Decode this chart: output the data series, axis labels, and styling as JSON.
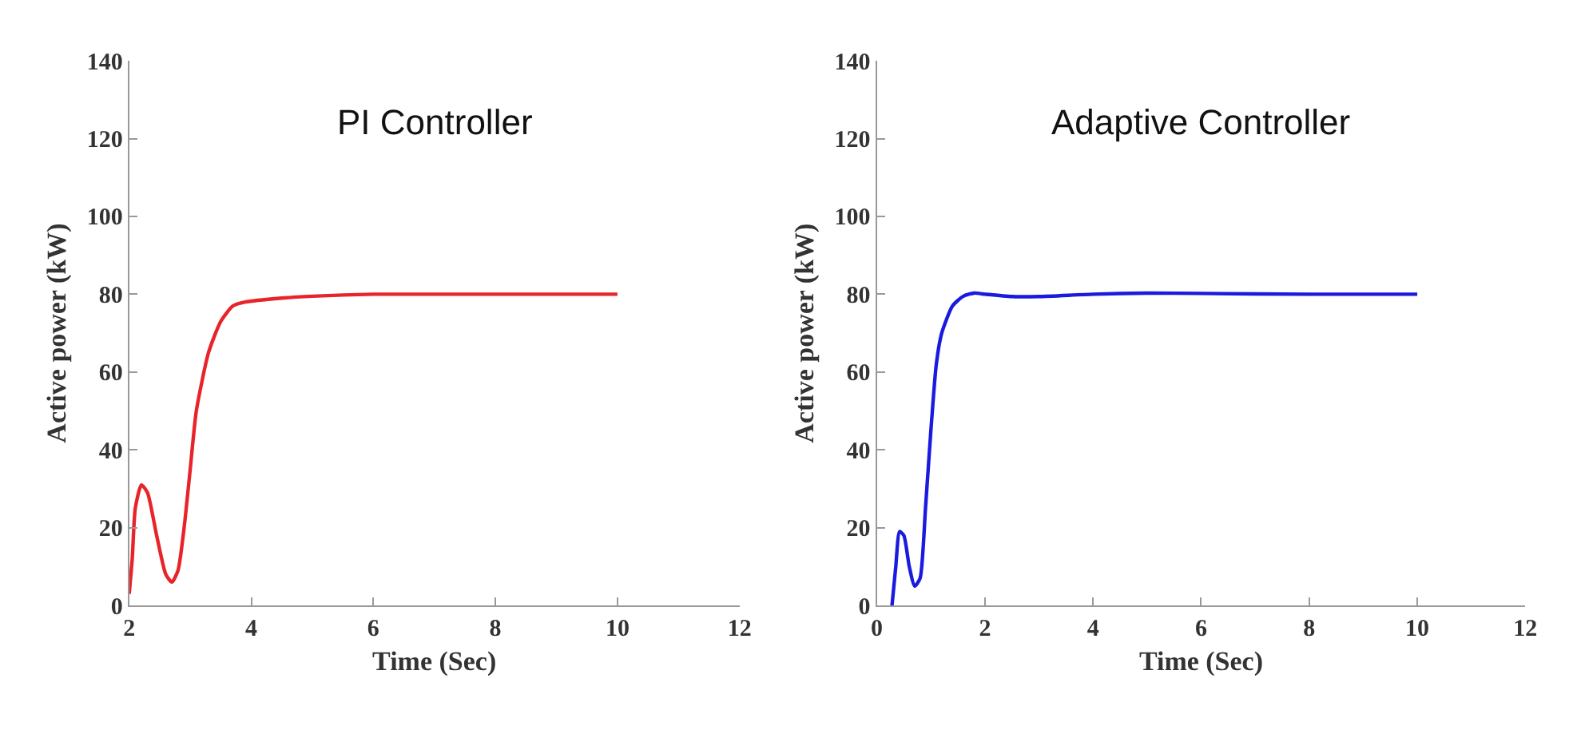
{
  "chart_data": [
    {
      "type": "line",
      "title": "PI Controller",
      "xlabel": "Time (Sec)",
      "ylabel": "Active power (kW)",
      "xlim": [
        2,
        12
      ],
      "xticks": [
        2,
        4,
        6,
        8,
        10,
        12
      ],
      "ylim": [
        0,
        140
      ],
      "yticks": [
        0,
        20,
        40,
        60,
        80,
        100,
        120,
        140
      ],
      "series": [
        {
          "color": "#e8242a",
          "x": [
            2,
            2.05,
            2.1,
            2.2,
            2.3,
            2.45,
            2.6,
            2.7,
            2.8,
            2.9,
            3.0,
            3.1,
            3.3,
            3.5,
            3.7,
            3.9,
            4.5,
            5,
            6,
            10
          ],
          "values": [
            3,
            12,
            25,
            31,
            29,
            18,
            8,
            6,
            9,
            20,
            35,
            50,
            65,
            73,
            77,
            78,
            79,
            79.5,
            80,
            80
          ]
        }
      ]
    },
    {
      "type": "line",
      "title": "Adaptive Controller",
      "xlabel": "Time (Sec)",
      "ylabel": "Active power (kW)",
      "xlim": [
        0,
        12
      ],
      "xticks": [
        0,
        2,
        4,
        6,
        8,
        10,
        12
      ],
      "ylim": [
        0,
        140
      ],
      "yticks": [
        0,
        20,
        40,
        60,
        80,
        100,
        120,
        140
      ],
      "series": [
        {
          "color": "#1a1ae0",
          "x": [
            0.28,
            0.35,
            0.42,
            0.5,
            0.6,
            0.7,
            0.8,
            0.9,
            1.0,
            1.1,
            1.2,
            1.4,
            1.6,
            1.8,
            2.0,
            2.5,
            3,
            4,
            5,
            6,
            8,
            10
          ],
          "values": [
            0,
            10,
            19,
            18,
            10,
            5,
            7,
            25,
            45,
            62,
            70,
            77,
            79.5,
            80.3,
            80,
            79.4,
            79.4,
            80,
            80.3,
            80.2,
            80,
            80
          ]
        }
      ]
    }
  ]
}
